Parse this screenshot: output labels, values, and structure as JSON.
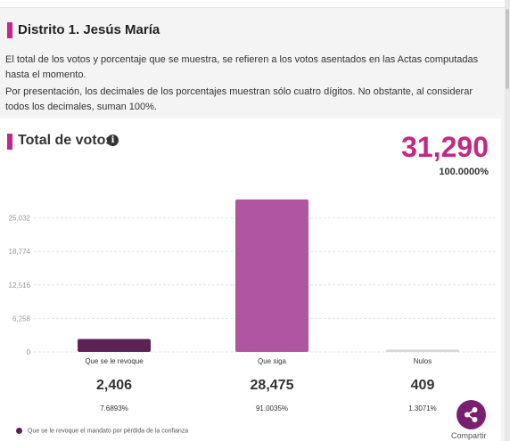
{
  "header": {
    "title": "Distrito 1. Jesús María",
    "paragraph1": "El total de los votos y porcentaje que se muestra, se refieren a los votos asentados en las Actas computadas hasta el momento.",
    "paragraph2": "Por presentación, los decimales de los porcentajes muestran sólo cuatro dígitos. No obstante, al considerar todos los decimales, suman 100%."
  },
  "summary": {
    "title": "Total de votos",
    "info_icon": "info-icon",
    "total_votes": "31,290",
    "total_pct": "100.0000%"
  },
  "chart_data": {
    "type": "bar",
    "categories": [
      "Que se le revoque",
      "Que siga",
      "Nulos"
    ],
    "values": [
      2406,
      28475,
      409
    ],
    "value_labels": [
      "2,406",
      "28,475",
      "409"
    ],
    "percent_labels": [
      "7.6893%",
      "91.0035%",
      "1.3071%"
    ],
    "colors": [
      "#5b2354",
      "#b0559f",
      "#d6d6d6"
    ],
    "yticks": [
      0,
      6258,
      12516,
      18774,
      25032
    ],
    "ytick_labels": [
      "0",
      "6,258",
      "12,516",
      "18,774",
      "25,032"
    ],
    "ylim": [
      0,
      31290
    ],
    "grid": true
  },
  "legend": {
    "text": "Que se le revoque el mandato por pérdida de la confianza",
    "color": "#5b2354"
  },
  "share": {
    "label": "Compartir",
    "icon": "share-icon"
  }
}
